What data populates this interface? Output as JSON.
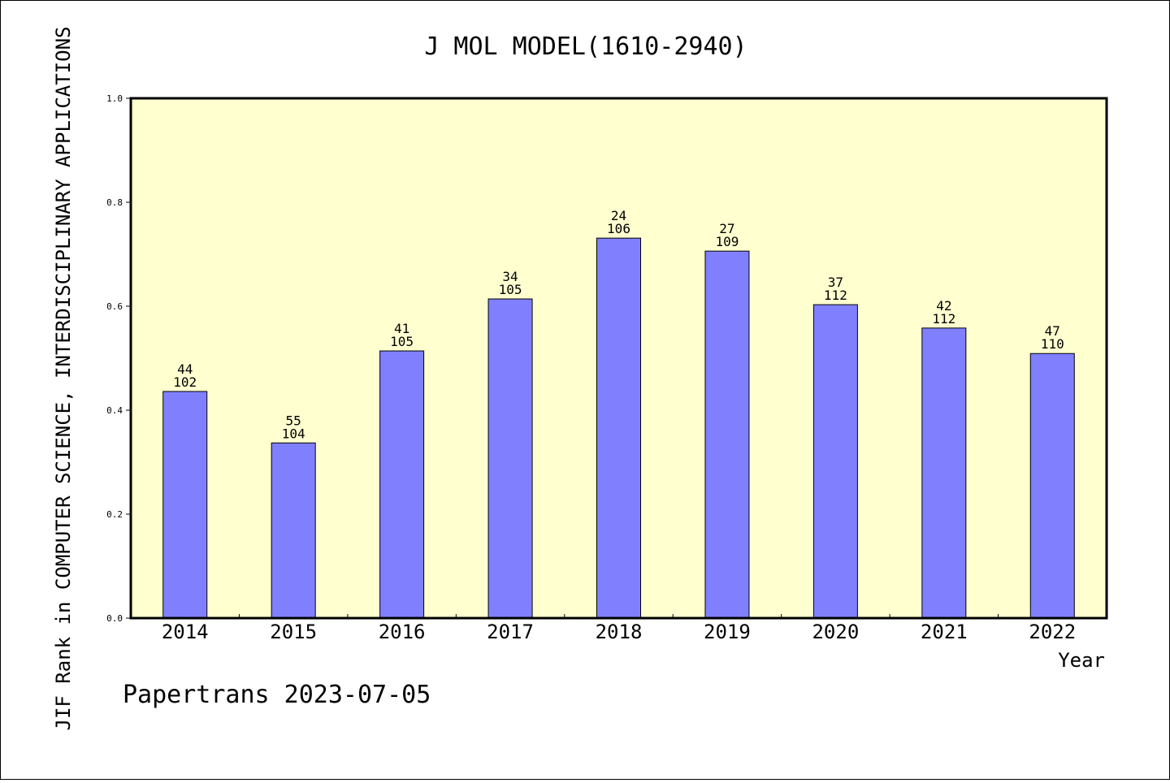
{
  "chart_data": {
    "type": "bar",
    "title": "J MOL MODEL(1610-2940)",
    "xlabel": "Year",
    "ylabel": "JIF Rank in COMPUTER SCIENCE, INTERDISCIPLINARY APPLICATIONS",
    "ylim": [
      0,
      1.0
    ],
    "yticks": [
      "0.0",
      "0.2",
      "0.4",
      "0.6",
      "0.8",
      "1.0"
    ],
    "categories": [
      "2014",
      "2015",
      "2016",
      "2017",
      "2018",
      "2019",
      "2020",
      "2021",
      "2022"
    ],
    "values": [
      0.436,
      0.337,
      0.514,
      0.614,
      0.731,
      0.706,
      0.603,
      0.558,
      0.509
    ],
    "rank": [
      "44",
      "55",
      "41",
      "34",
      "24",
      "27",
      "37",
      "42",
      "47"
    ],
    "total": [
      "102",
      "104",
      "105",
      "105",
      "106",
      "109",
      "112",
      "112",
      "110"
    ],
    "grid": false,
    "colors": {
      "bar": "#8080ff",
      "plot_bg": "#ffffd0",
      "axis": "#000000"
    }
  },
  "footer": "Papertrans 2023-07-05"
}
